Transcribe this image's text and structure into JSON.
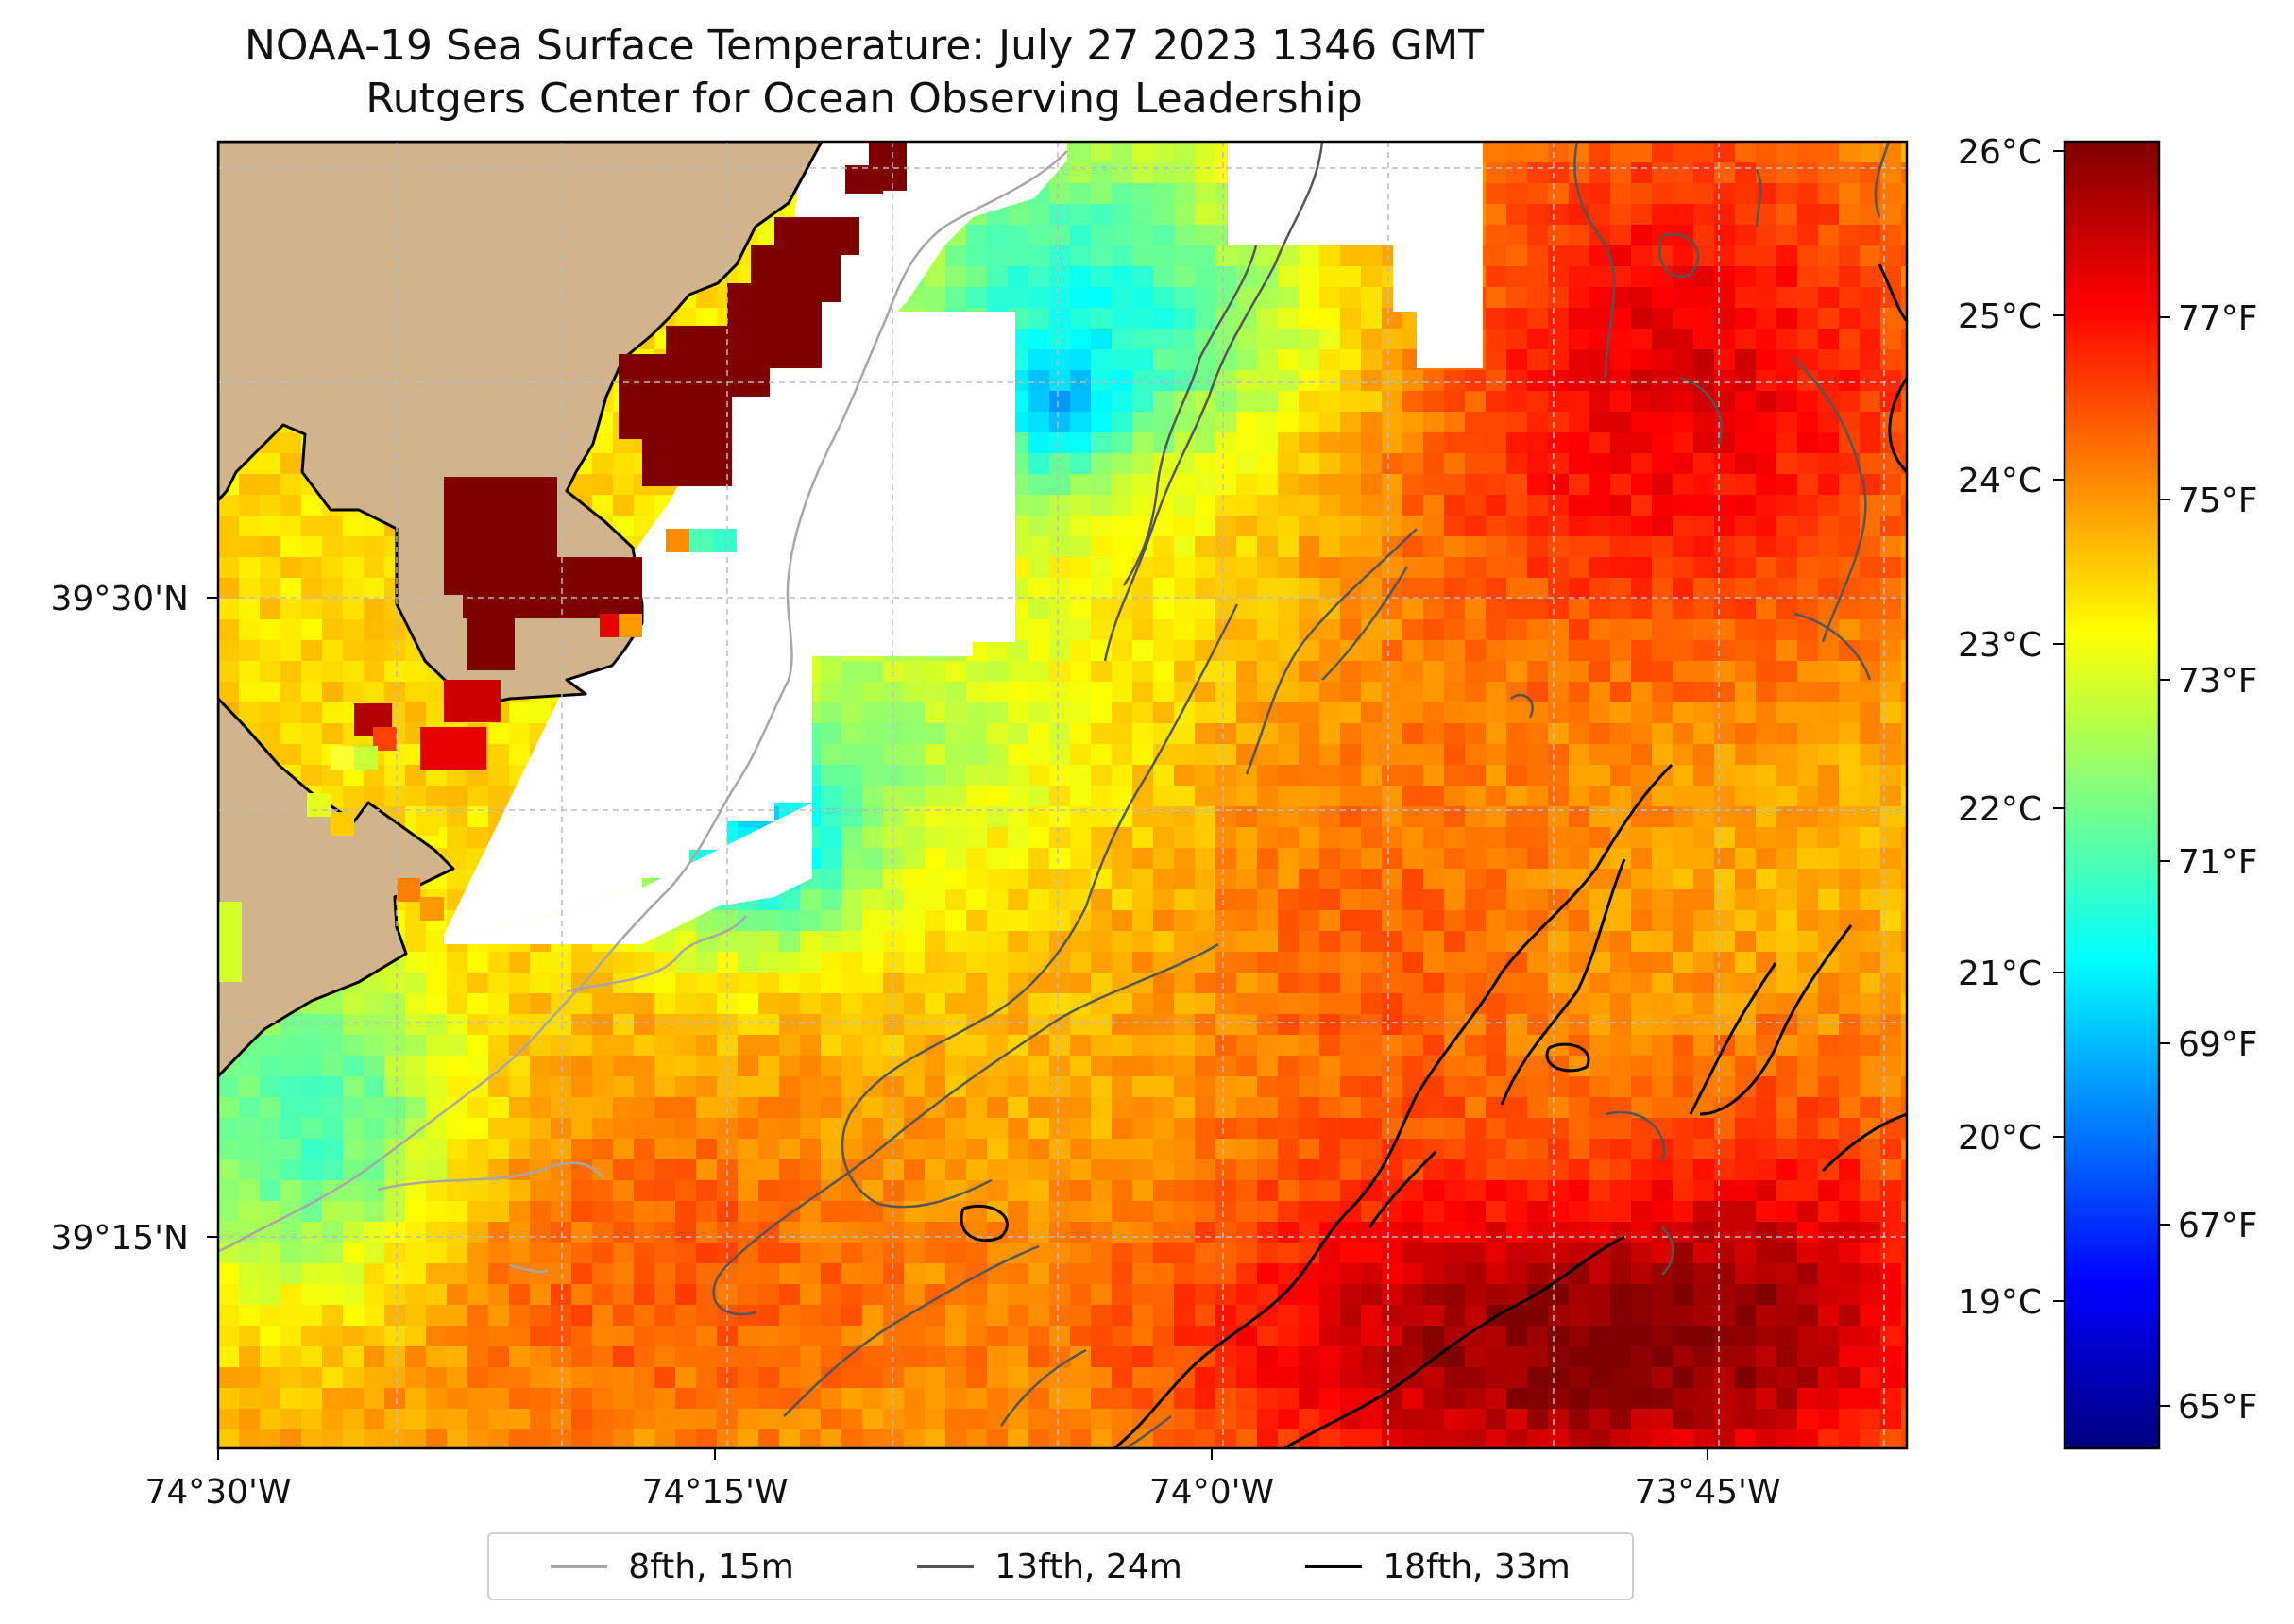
{
  "title": {
    "line1": "NOAA-19 Sea Surface Temperature: July 27 2023 1346 GMT",
    "line2": "Rutgers Center for Ocean Observing Leadership"
  },
  "axes": {
    "x_ticks": [
      "74°30'W",
      "74°15'W",
      "74°0'W",
      "73°45'W"
    ],
    "y_ticks": [
      "39°30'N",
      "39°15'N"
    ]
  },
  "colorbar": {
    "celsius_ticks": [
      "26°C",
      "25°C",
      "24°C",
      "23°C",
      "22°C",
      "21°C",
      "20°C",
      "19°C"
    ],
    "fahrenheit_ticks": [
      "77°F",
      "75°F",
      "73°F",
      "71°F",
      "69°F",
      "67°F",
      "65°F"
    ],
    "colors": [
      "#00007f",
      "#0000ff",
      "#007fff",
      "#00ffff",
      "#7fff7f",
      "#ffff00",
      "#ff7f00",
      "#ff0000",
      "#7f0000"
    ]
  },
  "legend": {
    "items": [
      {
        "label": "8fth, 15m",
        "color": "#a6a6a6"
      },
      {
        "label": "13fth, 24m",
        "color": "#555555"
      },
      {
        "label": "18fth, 33m",
        "color": "#000000"
      }
    ]
  },
  "colors": {
    "land": "#d2b48c",
    "no_data": "#ffffff",
    "grid": "#bbbbbb"
  }
}
